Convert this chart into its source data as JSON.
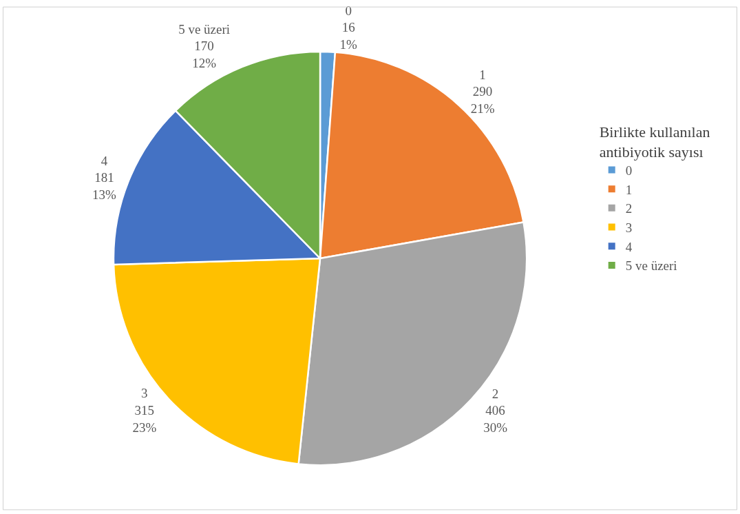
{
  "chart_data": {
    "type": "pie",
    "legend_title": "Birlikte kullanılan\nantibiyotik sayısı",
    "categories": [
      "0",
      "1",
      "2",
      "3",
      "4",
      "5 ve üzeri"
    ],
    "values": [
      16,
      290,
      406,
      315,
      181,
      170
    ],
    "colors": [
      "#5b9bd5",
      "#ed7d31",
      "#a5a5a5",
      "#ffc000",
      "#4472c4",
      "#70ad47"
    ],
    "value_labels": [
      "0\n16\n1%",
      "1\n290\n21%",
      "2\n406\n30%",
      "3\n315\n23%",
      "4\n181\n13%",
      "5 ve üzeri\n170\n12%"
    ],
    "legend": "right"
  }
}
